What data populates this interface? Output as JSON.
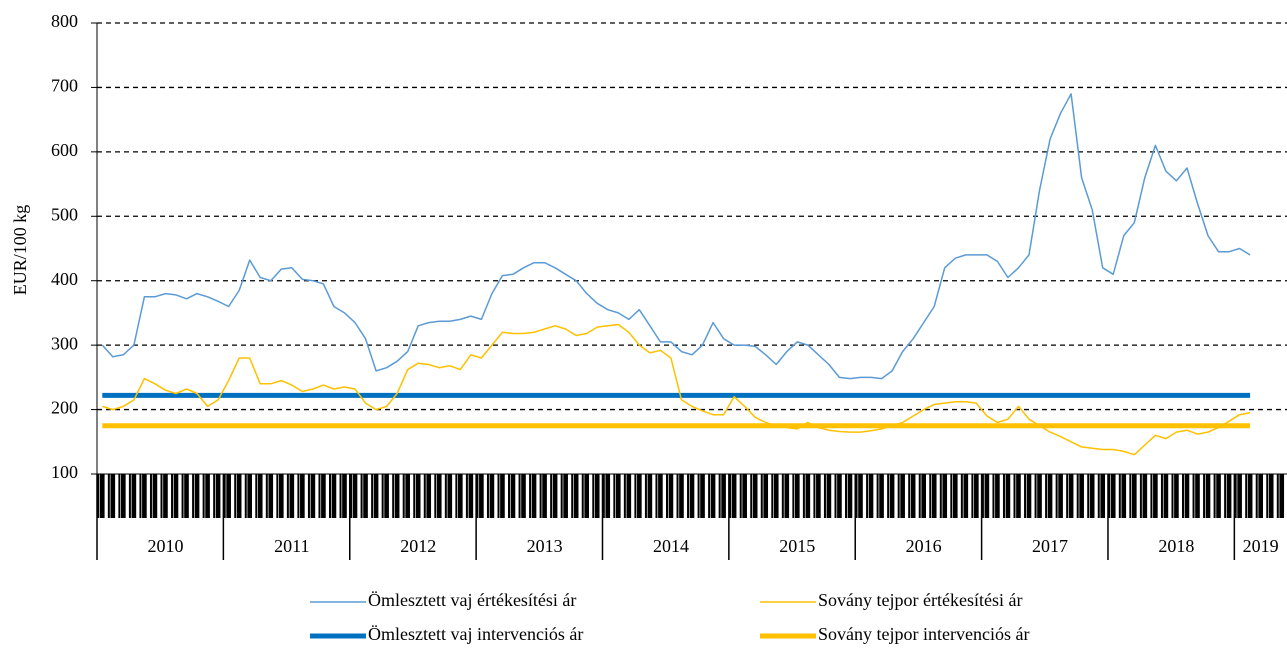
{
  "chart_data": {
    "type": "line",
    "y_label": "EUR/100 kg",
    "categories": [
      null,
      null,
      null,
      null,
      null,
      null,
      "2010",
      null,
      null,
      null,
      null,
      null,
      null,
      null,
      null,
      null,
      null,
      null,
      "2011",
      null,
      null,
      null,
      null,
      null,
      null,
      null,
      null,
      null,
      null,
      null,
      "2012",
      null,
      null,
      null,
      null,
      null,
      null,
      null,
      null,
      null,
      null,
      null,
      "2013",
      null,
      null,
      null,
      null,
      null,
      null,
      null,
      null,
      null,
      null,
      null,
      "2014",
      null,
      null,
      null,
      null,
      null,
      null,
      null,
      null,
      null,
      null,
      null,
      "2015",
      null,
      null,
      null,
      null,
      null,
      null,
      null,
      null,
      null,
      null,
      null,
      "2016",
      null,
      null,
      null,
      null,
      null,
      null,
      null,
      null,
      null,
      null,
      null,
      "2017",
      null,
      null,
      null,
      null,
      null,
      null,
      null,
      null,
      null,
      null,
      null,
      "2018",
      null,
      null,
      null,
      null,
      null,
      null,
      null,
      "2019",
      null,
      null
    ],
    "series": [
      {
        "name": "Ömlesztett vaj értékesítési ár",
        "color": "#5b9bd5",
        "width": 1.5,
        "values": [
          300,
          282,
          285,
          300,
          375,
          375,
          380,
          378,
          372,
          380,
          375,
          368,
          360,
          385,
          432,
          405,
          400,
          418,
          420,
          402,
          400,
          395,
          360,
          350,
          335,
          310,
          260,
          265,
          275,
          290,
          330,
          335,
          337,
          337,
          340,
          345,
          340,
          380,
          408,
          410,
          420,
          428,
          428,
          420,
          410,
          400,
          380,
          365,
          355,
          350,
          340,
          355,
          330,
          305,
          305,
          290,
          285,
          300,
          335,
          310,
          300,
          300,
          298,
          285,
          270,
          290,
          305,
          300,
          285,
          270,
          250,
          248,
          250,
          250,
          248,
          260,
          290,
          310,
          335,
          360,
          420,
          435,
          440,
          440,
          440,
          430,
          405,
          420,
          440,
          540,
          620,
          660,
          690,
          560,
          510,
          420,
          410,
          470,
          490,
          560,
          610,
          570,
          555,
          575,
          520,
          470,
          445,
          445,
          450,
          440,
          null,
          null,
          null
        ]
      },
      {
        "name": "Sovány tejpor értékesítési ár",
        "color": "#ffc000",
        "width": 1.5,
        "values": [
          205,
          200,
          205,
          215,
          248,
          240,
          230,
          225,
          232,
          225,
          205,
          215,
          245,
          280,
          280,
          240,
          240,
          245,
          238,
          228,
          232,
          238,
          232,
          235,
          232,
          210,
          200,
          205,
          225,
          262,
          272,
          270,
          265,
          268,
          262,
          285,
          280,
          300,
          320,
          318,
          318,
          320,
          325,
          330,
          325,
          315,
          318,
          328,
          330,
          332,
          320,
          300,
          288,
          292,
          280,
          215,
          205,
          198,
          192,
          192,
          220,
          205,
          188,
          180,
          175,
          172,
          170,
          180,
          172,
          168,
          166,
          165,
          165,
          167,
          170,
          175,
          180,
          190,
          200,
          208,
          210,
          212,
          212,
          210,
          190,
          180,
          185,
          205,
          185,
          175,
          165,
          158,
          150,
          142,
          140,
          138,
          138,
          135,
          130,
          145,
          160,
          155,
          165,
          168,
          162,
          165,
          172,
          182,
          192,
          195,
          null,
          null,
          null
        ]
      },
      {
        "name": "Ömlesztett vaj intervenciós ár",
        "color": "#0070c0",
        "width": 5,
        "values": [
          222,
          222,
          222,
          222,
          222,
          222,
          222,
          222,
          222,
          222,
          222,
          222,
          222,
          222,
          222,
          222,
          222,
          222,
          222,
          222,
          222,
          222,
          222,
          222,
          222,
          222,
          222,
          222,
          222,
          222,
          222,
          222,
          222,
          222,
          222,
          222,
          222,
          222,
          222,
          222,
          222,
          222,
          222,
          222,
          222,
          222,
          222,
          222,
          222,
          222,
          222,
          222,
          222,
          222,
          222,
          222,
          222,
          222,
          222,
          222,
          222,
          222,
          222,
          222,
          222,
          222,
          222,
          222,
          222,
          222,
          222,
          222,
          222,
          222,
          222,
          222,
          222,
          222,
          222,
          222,
          222,
          222,
          222,
          222,
          222,
          222,
          222,
          222,
          222,
          222,
          222,
          222,
          222,
          222,
          222,
          222,
          222,
          222,
          222,
          222,
          222,
          222,
          222,
          222,
          222,
          222,
          222,
          222,
          222,
          222,
          null,
          null,
          null
        ]
      },
      {
        "name": "Sovány tejpor intervenciós ár",
        "color": "#ffc000",
        "width": 5,
        "values": [
          175,
          175,
          175,
          175,
          175,
          175,
          175,
          175,
          175,
          175,
          175,
          175,
          175,
          175,
          175,
          175,
          175,
          175,
          175,
          175,
          175,
          175,
          175,
          175,
          175,
          175,
          175,
          175,
          175,
          175,
          175,
          175,
          175,
          175,
          175,
          175,
          175,
          175,
          175,
          175,
          175,
          175,
          175,
          175,
          175,
          175,
          175,
          175,
          175,
          175,
          175,
          175,
          175,
          175,
          175,
          175,
          175,
          175,
          175,
          175,
          175,
          175,
          175,
          175,
          175,
          175,
          175,
          175,
          175,
          175,
          175,
          175,
          175,
          175,
          175,
          175,
          175,
          175,
          175,
          175,
          175,
          175,
          175,
          175,
          175,
          175,
          175,
          175,
          175,
          175,
          175,
          175,
          175,
          175,
          175,
          175,
          175,
          175,
          175,
          175,
          175,
          175,
          175,
          175,
          175,
          175,
          175,
          175,
          175,
          175,
          null,
          null,
          null
        ]
      }
    ],
    "ylim": [
      100,
      800
    ],
    "yticks": [
      100,
      200,
      300,
      400,
      500,
      600,
      700,
      800
    ],
    "grid": true
  }
}
